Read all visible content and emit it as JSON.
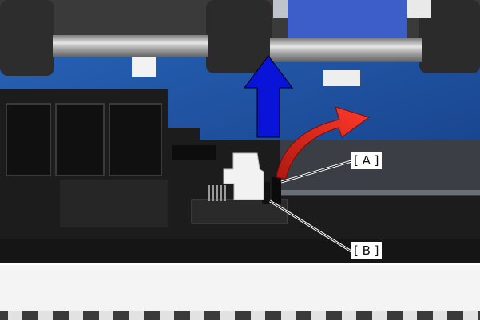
{
  "photo": {
    "callouts": [
      {
        "id": "A",
        "label": "[ A ]"
      },
      {
        "id": "B",
        "label": "[ B ]"
      }
    ],
    "arrows": [
      {
        "name": "up-arrow",
        "color": "#0a14d8"
      },
      {
        "name": "rotate-arrow",
        "color": "#e0241b"
      }
    ],
    "colors": {
      "blue_panel": "#1d4f9c",
      "black_frame": "#1c1c1c",
      "metal_shaft": "#b9b9b9",
      "white_part": "#f2f2f2"
    }
  }
}
